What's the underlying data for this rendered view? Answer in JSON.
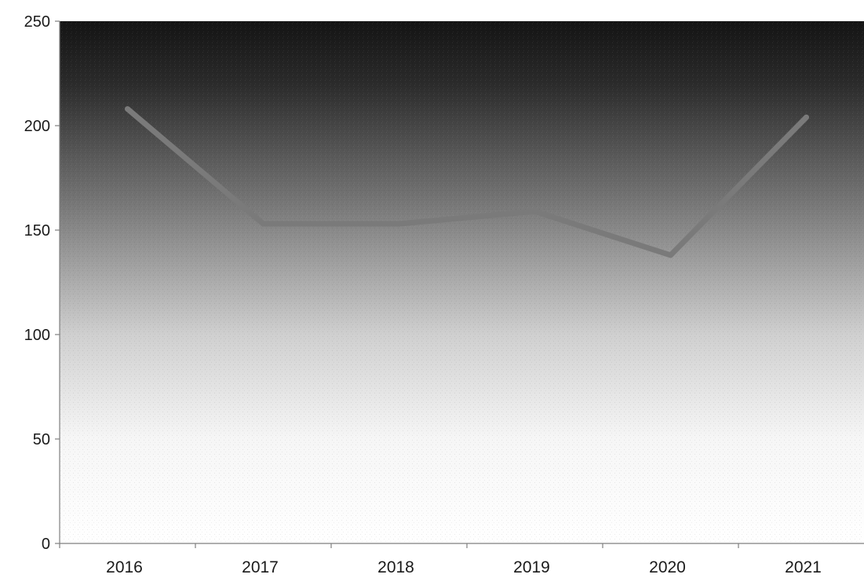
{
  "chart_data": {
    "type": "line",
    "title": "",
    "xlabel": "",
    "ylabel": "",
    "categories": [
      "2016",
      "2017",
      "2018",
      "2019",
      "2020",
      "2021"
    ],
    "series": [
      {
        "values": [
          208,
          153,
          153,
          159,
          138,
          204
        ]
      }
    ],
    "ylim": [
      0,
      250
    ],
    "yticks": [
      0,
      50,
      100,
      150,
      200,
      250
    ],
    "grid": false,
    "legend": "none",
    "colors": {
      "line": "#7a7a7a",
      "background_top": "#141414",
      "background_bottom": "#ffffff",
      "axis": "#7f7f7f"
    }
  }
}
